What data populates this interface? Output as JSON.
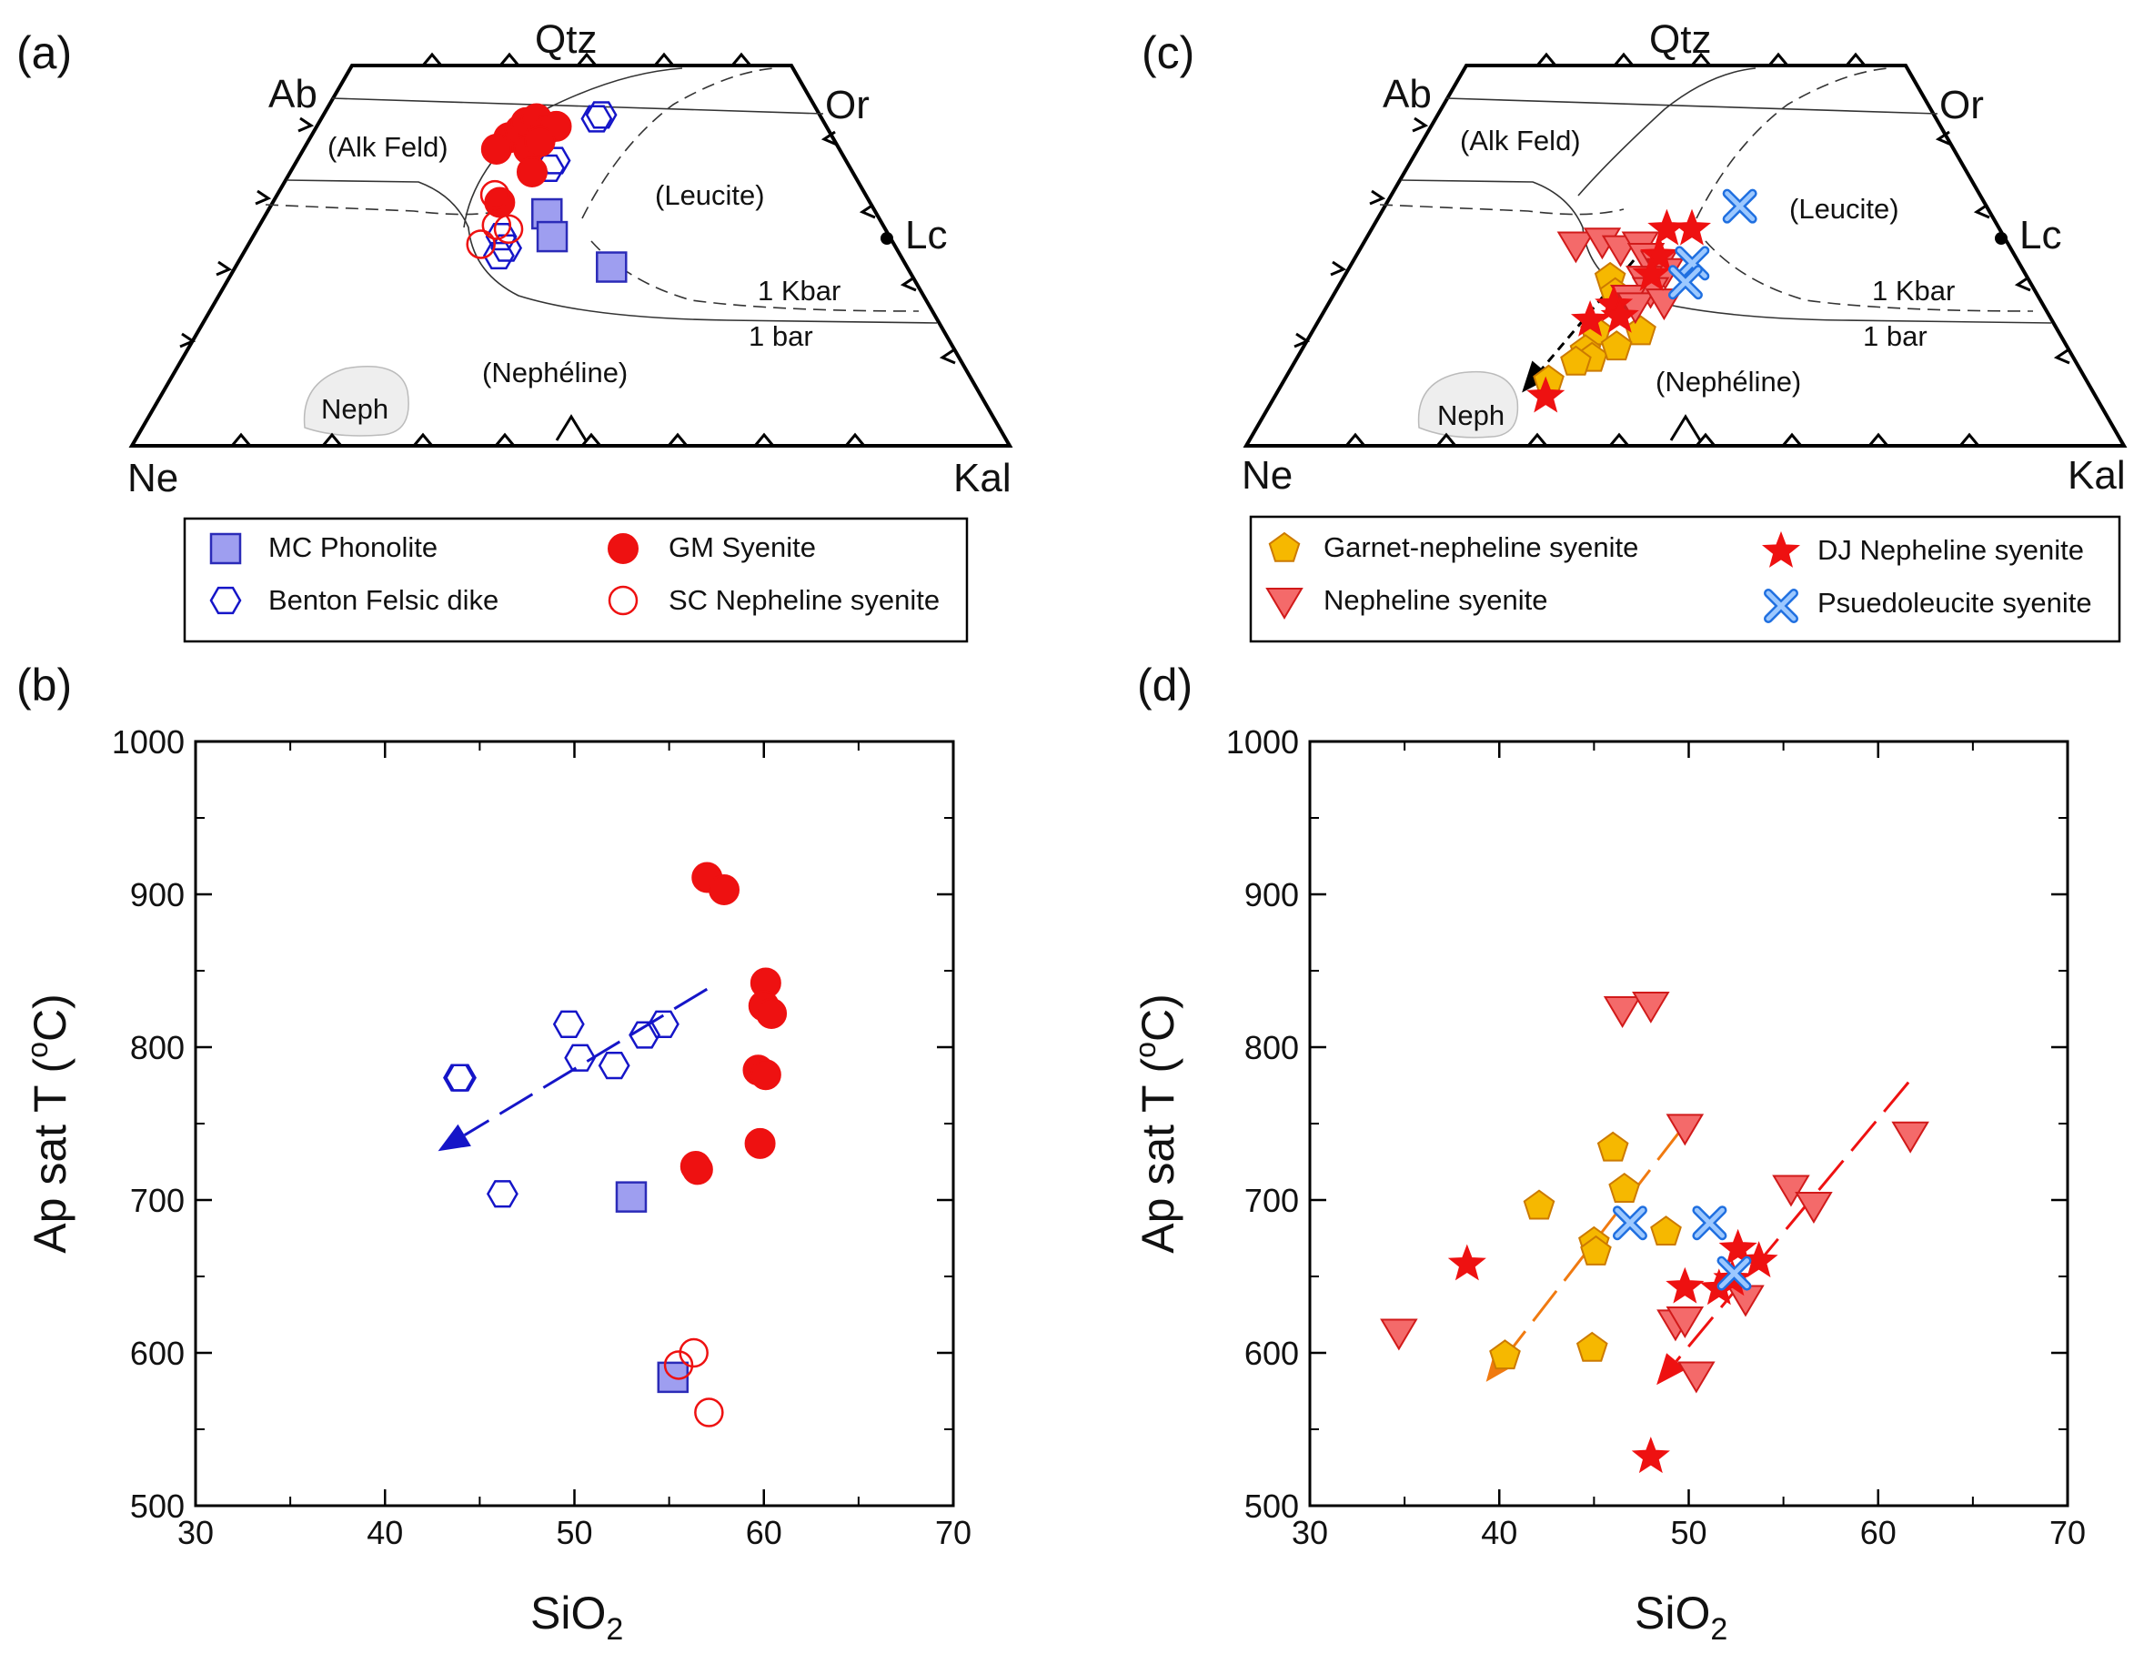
{
  "chart_data": [
    {
      "panel": "(a)",
      "type": "scatter",
      "subtype": "ternary",
      "apices": {
        "top": "Qtz",
        "upper_left": "Ab",
        "upper_right": "Or",
        "right": "Lc",
        "bottom_left": "Ne",
        "bottom_right": "Kal"
      },
      "field_labels": [
        "(Alk Feld)",
        "(Leucite)",
        "(Nephéline)",
        "Neph"
      ],
      "curve_labels": [
        "1 Kbar",
        "1 bar"
      ],
      "legend": [
        "MC Phonolite",
        "Benton Felsic dike",
        "GM Syenite",
        "SC Nepheline syenite"
      ],
      "series": [
        {
          "name": "MC Phonolite",
          "marker": "square",
          "fill": "#9e9ef0",
          "stroke": "#2b2bb8",
          "points": [
            [
              0.46,
              0.61
            ],
            [
              0.47,
              0.55
            ],
            [
              0.56,
              0.47
            ]
          ]
        },
        {
          "name": "Benton Felsic dike",
          "marker": "hexagon-open",
          "stroke": "#1515c8",
          "points": [
            [
              0.55,
              0.86
            ],
            [
              0.56,
              0.87
            ],
            [
              0.46,
              0.73
            ],
            [
              0.47,
              0.75
            ],
            [
              0.39,
              0.55
            ],
            [
              0.4,
              0.52
            ],
            [
              0.39,
              0.5
            ]
          ]
        },
        {
          "name": "GM Syenite",
          "marker": "circle",
          "fill": "#ee1111",
          "stroke": "#ee1111",
          "points": [
            [
              0.38,
              0.81
            ],
            [
              0.4,
              0.83
            ],
            [
              0.41,
              0.85
            ],
            [
              0.43,
              0.86
            ],
            [
              0.45,
              0.83
            ],
            [
              0.47,
              0.84
            ],
            [
              0.42,
              0.78
            ],
            [
              0.44,
              0.8
            ],
            [
              0.36,
              0.78
            ],
            [
              0.38,
              0.64
            ],
            [
              0.43,
              0.72
            ]
          ]
        },
        {
          "name": "SC Nepheline syenite",
          "marker": "circle-open",
          "stroke": "#ee1111",
          "points": [
            [
              0.37,
              0.66
            ],
            [
              0.38,
              0.58
            ],
            [
              0.36,
              0.53
            ],
            [
              0.4,
              0.57
            ]
          ]
        }
      ]
    },
    {
      "panel": "(b)",
      "type": "scatter",
      "xlabel": "SiO",
      "xlabel_sub": "2",
      "ylabel": "Ap sat T (",
      "ylabel_sup": "o",
      "ylabel_end": "C)",
      "xlim": [
        30,
        70
      ],
      "ylim": [
        500,
        1000
      ],
      "xticks": [
        "30",
        "40",
        "50",
        "60",
        "70"
      ],
      "yticks": [
        "500",
        "600",
        "700",
        "800",
        "900",
        "1000"
      ],
      "series": [
        {
          "name": "MC Phonolite",
          "marker": "square",
          "fill": "#9e9ef0",
          "stroke": "#2b2bb8",
          "points": [
            [
              53.0,
              702
            ],
            [
              55.2,
              584
            ]
          ]
        },
        {
          "name": "Benton Felsic dike",
          "marker": "hexagon-open",
          "stroke": "#1515c8",
          "points": [
            [
              43.9,
              780
            ],
            [
              44.0,
              780
            ],
            [
              46.2,
              704
            ],
            [
              49.7,
              815
            ],
            [
              50.3,
              793
            ],
            [
              52.1,
              788
            ],
            [
              53.7,
              808
            ],
            [
              54.7,
              815
            ]
          ]
        },
        {
          "name": "GM Syenite",
          "marker": "circle",
          "fill": "#ee1111",
          "stroke": "#ee1111",
          "points": [
            [
              57.0,
              911
            ],
            [
              57.9,
              903
            ],
            [
              60.1,
              842
            ],
            [
              60.0,
              827
            ],
            [
              60.4,
              822
            ],
            [
              59.7,
              785
            ],
            [
              60.1,
              782
            ],
            [
              59.8,
              737
            ],
            [
              56.4,
              722
            ],
            [
              56.5,
              720
            ]
          ]
        },
        {
          "name": "SC Nepheline syenite",
          "marker": "circle-open",
          "stroke": "#ee1111",
          "points": [
            [
              56.3,
              600
            ],
            [
              55.5,
              592
            ],
            [
              57.1,
              561
            ]
          ]
        }
      ],
      "trend_arrow": {
        "color": "#1515c8",
        "from": [
          57.0,
          838
        ],
        "to": [
          42.8,
          732
        ]
      }
    },
    {
      "panel": "(c)",
      "type": "scatter",
      "subtype": "ternary",
      "apices": {
        "top": "Qtz",
        "upper_left": "Ab",
        "upper_right": "Or",
        "right": "Lc",
        "bottom_left": "Ne",
        "bottom_right": "Kal"
      },
      "field_labels": [
        "(Alk Feld)",
        "(Leucite)",
        "(Nephéline)",
        "Neph"
      ],
      "curve_labels": [
        "1 Kbar",
        "1 bar"
      ],
      "legend": [
        "Garnet-nepheline syenite",
        "Nepheline syenite",
        "DJ Nepheline syenite",
        "Psuedoleucite syenite"
      ],
      "series": [
        {
          "name": "Garnet-nepheline syenite",
          "marker": "pentagon",
          "fill": "#f6b800",
          "stroke": "#cc7a00",
          "points": [
            [
              0.39,
              0.44
            ],
            [
              0.4,
              0.4
            ],
            [
              0.38,
              0.3
            ],
            [
              0.37,
              0.25
            ],
            [
              0.38,
              0.23
            ],
            [
              0.36,
              0.22
            ],
            [
              0.33,
              0.17
            ],
            [
              0.44,
              0.3
            ],
            [
              0.41,
              0.26
            ]
          ]
        },
        {
          "name": "Nepheline syenite",
          "marker": "triangle-down",
          "fill": "#f46a6a",
          "stroke": "#d11a1a",
          "points": [
            [
              0.33,
              0.53
            ],
            [
              0.37,
              0.54
            ],
            [
              0.4,
              0.52
            ],
            [
              0.43,
              0.53
            ],
            [
              0.44,
              0.5
            ],
            [
              0.46,
              0.48
            ],
            [
              0.47,
              0.46
            ],
            [
              0.44,
              0.44
            ],
            [
              0.45,
              0.41
            ],
            [
              0.42,
              0.39
            ],
            [
              0.43,
              0.37
            ],
            [
              0.47,
              0.38
            ]
          ]
        },
        {
          "name": "DJ Nepheline syenite",
          "marker": "star",
          "fill": "#ee1111",
          "stroke": "#ee1111",
          "points": [
            [
              0.47,
              0.57
            ],
            [
              0.51,
              0.57
            ],
            [
              0.46,
              0.5
            ],
            [
              0.45,
              0.45
            ],
            [
              0.4,
              0.37
            ],
            [
              0.41,
              0.34
            ],
            [
              0.37,
              0.33
            ],
            [
              0.33,
              0.13
            ]
          ]
        },
        {
          "name": "Psuedoleucite syenite",
          "marker": "x",
          "fill": "#9cc8ff",
          "stroke": "#1f6fe0",
          "points": [
            [
              0.59,
              0.63
            ],
            [
              0.51,
              0.48
            ],
            [
              0.5,
              0.43
            ]
          ]
        }
      ],
      "trend_arrow": {
        "color": "#000000",
        "from": [
          0.45,
          0.55
        ],
        "to": [
          0.3,
          0.14
        ]
      }
    },
    {
      "panel": "(d)",
      "type": "scatter",
      "xlabel": "SiO",
      "xlabel_sub": "2",
      "ylabel": "Ap sat T (",
      "ylabel_sup": "o",
      "ylabel_end": "C)",
      "xlim": [
        30,
        70
      ],
      "ylim": [
        500,
        1000
      ],
      "xticks": [
        "30",
        "40",
        "50",
        "60",
        "70"
      ],
      "yticks": [
        "500",
        "600",
        "700",
        "800",
        "900",
        "1000"
      ],
      "series": [
        {
          "name": "Garnet-nepheline syenite",
          "marker": "pentagon",
          "fill": "#f6b800",
          "stroke": "#cc7a00",
          "points": [
            [
              40.3,
              598
            ],
            [
              42.1,
              696
            ],
            [
              44.9,
              603
            ],
            [
              45.0,
              672
            ],
            [
              45.1,
              666
            ],
            [
              46.0,
              734
            ],
            [
              46.6,
              707
            ],
            [
              48.8,
              679
            ]
          ]
        },
        {
          "name": "Nepheline syenite",
          "marker": "triangle-down",
          "fill": "#f46a6a",
          "stroke": "#d11a1a",
          "points": [
            [
              34.7,
              614
            ],
            [
              46.5,
              825
            ],
            [
              48.0,
              828
            ],
            [
              49.8,
              748
            ],
            [
              49.3,
              620
            ],
            [
              49.8,
              622
            ],
            [
              50.4,
              586
            ],
            [
              53.0,
              636
            ],
            [
              55.4,
              708
            ],
            [
              56.6,
              697
            ],
            [
              61.7,
              743
            ]
          ]
        },
        {
          "name": "DJ Nepheline syenite",
          "marker": "star",
          "fill": "#ee1111",
          "stroke": "#ee1111",
          "points": [
            [
              38.3,
              658
            ],
            [
              48.0,
              532
            ],
            [
              49.8,
              643
            ],
            [
              51.6,
              642
            ],
            [
              52.3,
              648
            ],
            [
              52.6,
              668
            ],
            [
              53.7,
              660
            ]
          ]
        },
        {
          "name": "Psuedoleucite syenite",
          "marker": "x",
          "fill": "#9cc8ff",
          "stroke": "#1f6fe0",
          "points": [
            [
              46.9,
              685
            ],
            [
              51.1,
              685
            ],
            [
              52.4,
              652
            ]
          ]
        }
      ],
      "trend_arrows": [
        {
          "color": "#f07a10",
          "from": [
            49.6,
            746
          ],
          "to": [
            39.3,
            581
          ]
        },
        {
          "color": "#ee1111",
          "from": [
            61.6,
            777
          ],
          "to": [
            48.3,
            579
          ]
        }
      ]
    }
  ]
}
